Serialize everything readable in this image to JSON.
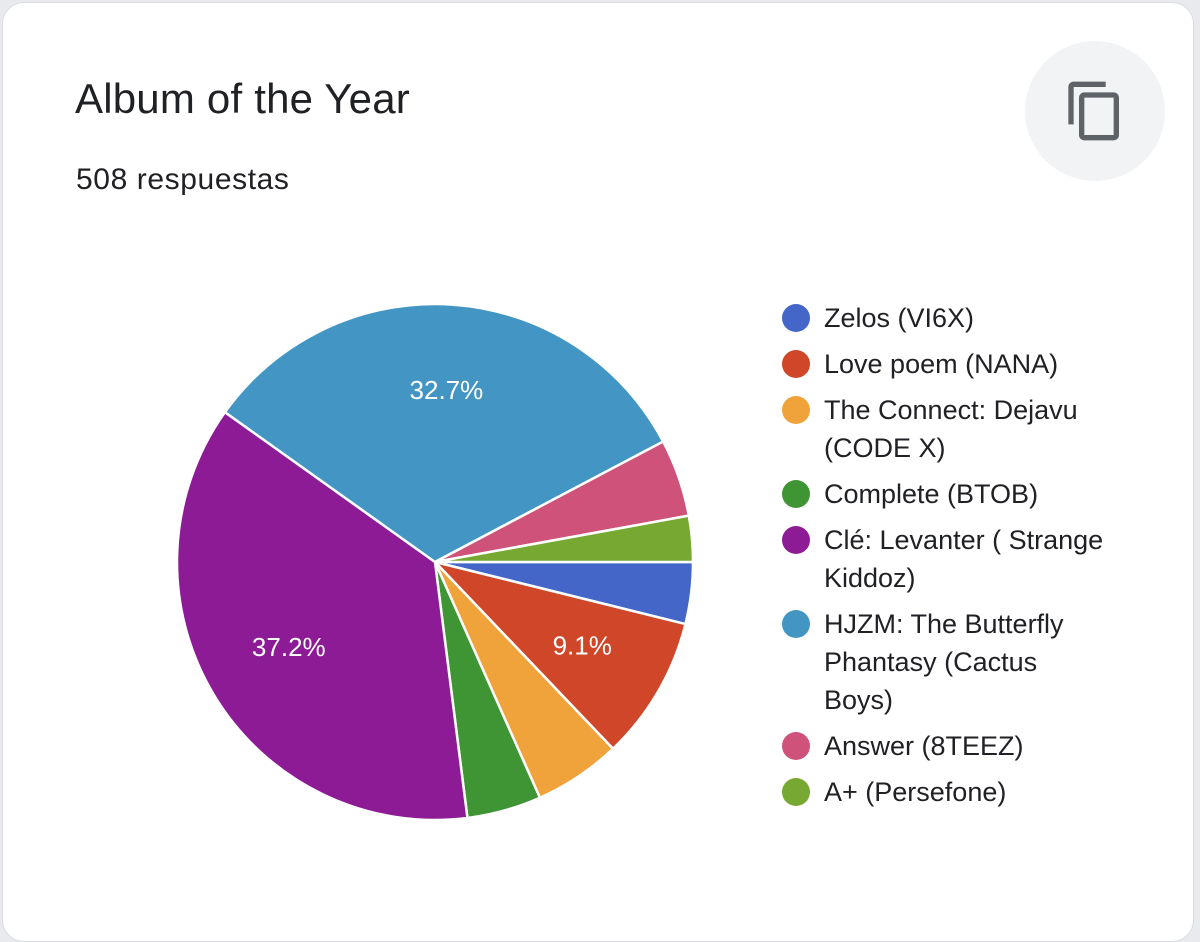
{
  "card": {
    "title": "Album of the Year",
    "subtitle": "508 respuestas",
    "copy_icon": "copy-icon"
  },
  "chart_data": {
    "type": "pie",
    "title": "Album of the Year",
    "total_responses": 508,
    "legend_position": "right",
    "start_angle_deg": 90,
    "direction": "clockwise",
    "slices": [
      {
        "label": "Zelos (VI6X)",
        "value": 3.9,
        "color": "#4366c8",
        "display_label": ""
      },
      {
        "label": "Love poem (NANA)",
        "value": 9.1,
        "color": "#cf4628",
        "display_label": "9.1%"
      },
      {
        "label": "The Connect: Dejavu (CODE X)",
        "value": 5.5,
        "color": "#f0a23b",
        "display_label": ""
      },
      {
        "label": "Complete (BTOB)",
        "value": 4.7,
        "color": "#3f9433",
        "display_label": ""
      },
      {
        "label": "Clé: Levanter ( Strange Kiddoz)",
        "value": 37.2,
        "color": "#8e1b96",
        "display_label": "37.2%"
      },
      {
        "label": "HJZM: The Butterfly Phantasy (Cactus Boys)",
        "value": 32.7,
        "color": "#4396c4",
        "display_label": "32.7%"
      },
      {
        "label": "Answer (8TEEZ)",
        "value": 4.9,
        "color": "#ce5279",
        "display_label": ""
      },
      {
        "label": "A+ (Persefone)",
        "value": 2.9,
        "color": "#76a832",
        "display_label": ""
      }
    ]
  }
}
